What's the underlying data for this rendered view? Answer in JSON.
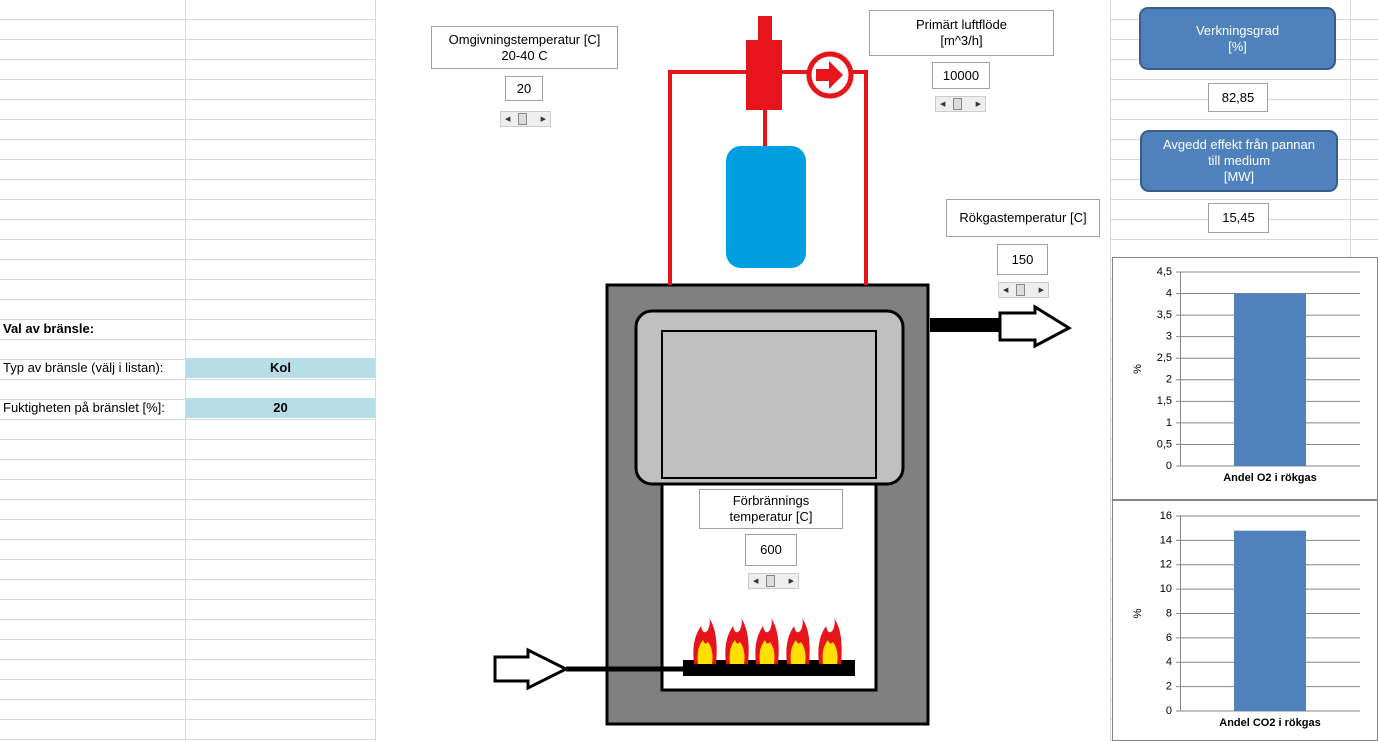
{
  "sheet": {
    "heading": "Val av bränsle:",
    "fields": [
      {
        "label": "Typ av bränsle (välj i listan):",
        "value": "Kol"
      },
      {
        "label": "Fuktigheten på bränslet [%]:",
        "value": "20"
      }
    ]
  },
  "controls": [
    {
      "label": [
        "Omgivningstemperatur [C]",
        "20-40 C"
      ],
      "value": "20"
    },
    {
      "label": [
        "Primärt luftflöde",
        "[m^3/h]"
      ],
      "value": "10000"
    },
    {
      "label": [
        "Rökgastemperatur [C]"
      ],
      "value": "150"
    },
    {
      "label": [
        "Förbrännings",
        "temperatur [C]"
      ],
      "value": "600"
    }
  ],
  "outputs": [
    {
      "label": [
        "Verkningsgrad",
        "[%]"
      ],
      "value": "82,85"
    },
    {
      "label": [
        "Avgedd effekt från pannan",
        "till medium",
        "[MW]"
      ],
      "value": "15,45"
    }
  ],
  "charts": [
    {
      "type": "bar",
      "y_label": "%",
      "categories": [
        "Andel O2 i rökgas"
      ],
      "values": [
        4
      ],
      "color": "#4f81bd",
      "ylim": [
        0,
        4.5
      ],
      "yticks": [
        0,
        {
          "value": 0.5,
          "label": "0,5"
        },
        1,
        {
          "value": 1.5,
          "label": "1,5"
        },
        2,
        {
          "value": 2.5,
          "label": "2,5"
        },
        3,
        {
          "value": 3.5,
          "label": "3,5"
        },
        4,
        {
          "value": 4.5,
          "label": "4,5"
        }
      ],
      "grid": true
    },
    {
      "type": "bar",
      "y_label": "%",
      "categories": [
        "Andel CO2 i rökgas"
      ],
      "values": [
        14.8
      ],
      "color": "#4f81bd",
      "ylim": [
        0,
        16
      ],
      "yticks": [
        0,
        2,
        4,
        6,
        8,
        10,
        12,
        14,
        16
      ],
      "grid": true
    }
  ]
}
